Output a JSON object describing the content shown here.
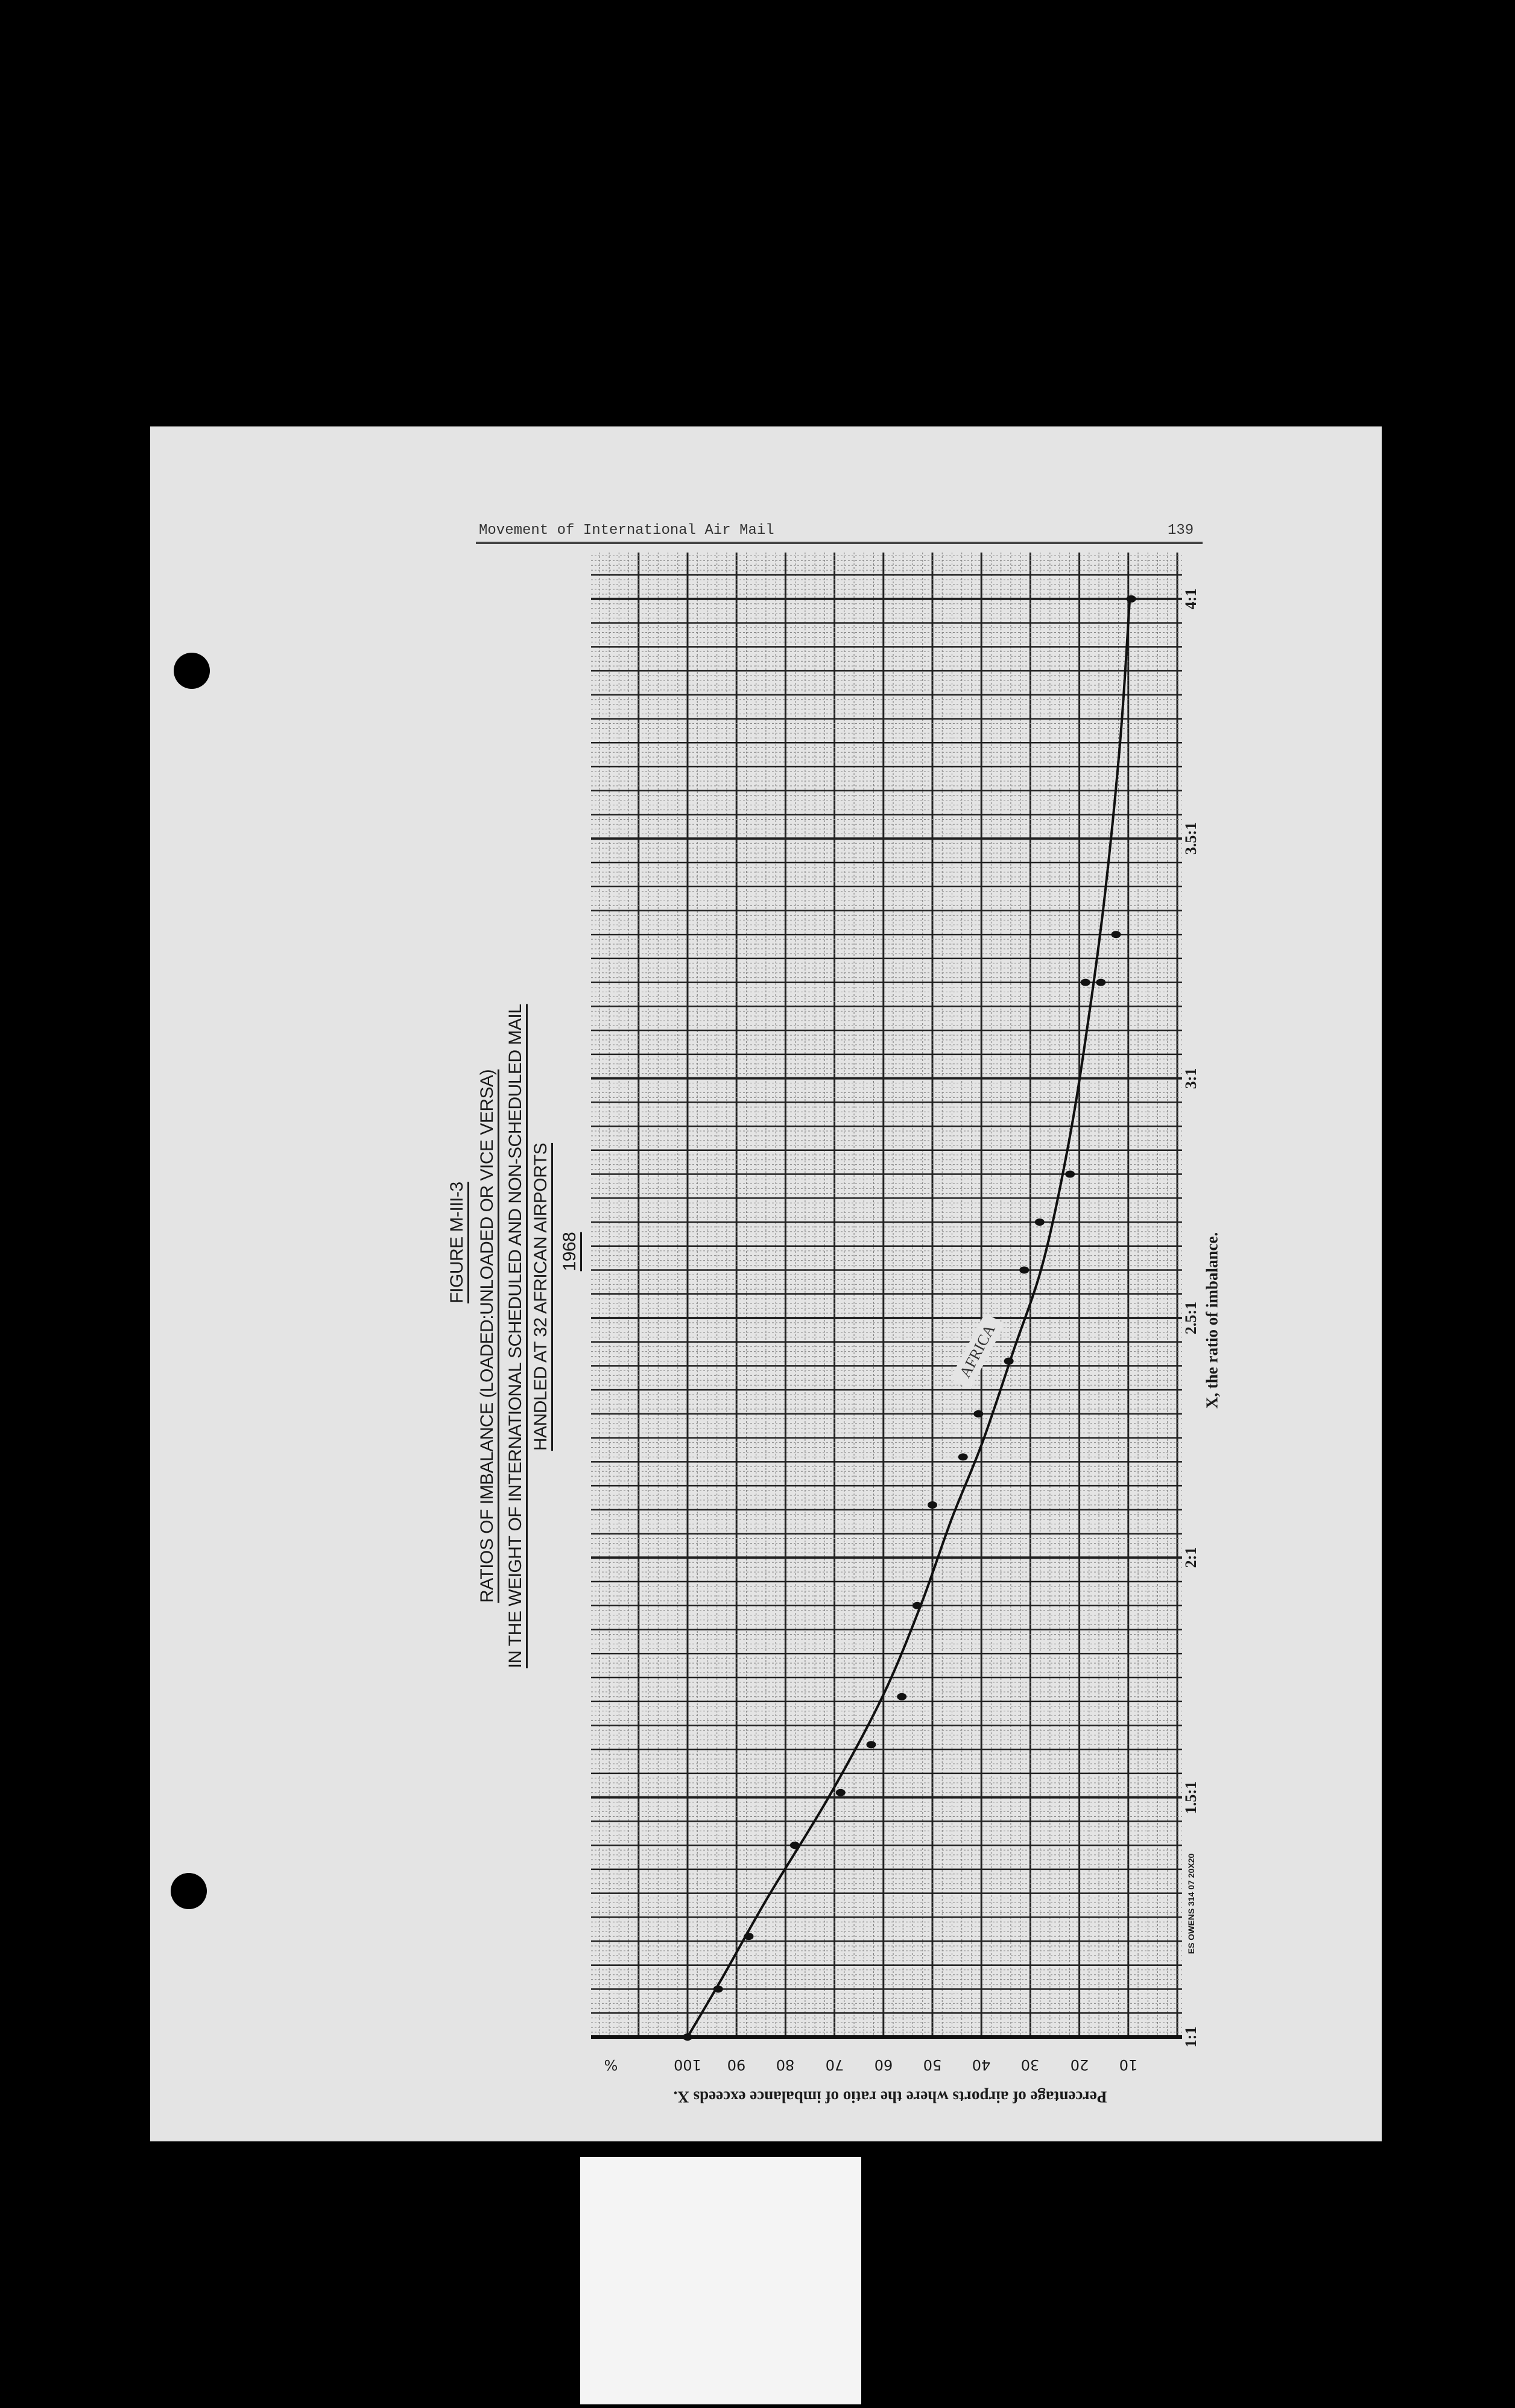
{
  "header": {
    "running_title": "Movement of International Air Mail",
    "page_number": "139"
  },
  "figure": {
    "number": "FIGURE M-III-3",
    "title_line1": "RATIOS OF IMBALANCE (LOADED:UNLOADED OR VICE VERSA)",
    "title_line2": "IN THE WEIGHT OF INTERNATIONAL SCHEDULED AND NON-SCHEDULED MAIL",
    "title_line3": "HANDLED AT 32 AFRICAN AIRPORTS",
    "year": "1968",
    "paper_imprint": "ES OWENS 314 07 20X20"
  },
  "chart_data": {
    "type": "scatter",
    "title": "RATIOS OF IMBALANCE (LOADED:UNLOADED OR VICE VERSA) IN THE WEIGHT OF INTERNATIONAL SCHEDULED AND NON-SCHEDULED MAIL HANDLED AT 32 AFRICAN AIRPORTS",
    "xlabel": "X, the ratio of imbalance.",
    "ylabel": "Percentage of airports where the ratio of imbalance exceeds X.",
    "y_unit": "%",
    "orientation": "rotated 90 degrees on page",
    "x_ticks": [
      "1:1",
      "1.5:1",
      "2:1",
      "2.5:1",
      "3:1",
      "3.5:1",
      "4:1"
    ],
    "x_tick_values": [
      1,
      1.5,
      2,
      2.5,
      3,
      3.5,
      4
    ],
    "y_ticks": [
      "100",
      "90",
      "80",
      "70",
      "60",
      "50",
      "40",
      "30",
      "20",
      "10"
    ],
    "y_tick_values": [
      100,
      90,
      80,
      70,
      60,
      50,
      40,
      30,
      20,
      10
    ],
    "xlim": [
      1,
      4.1
    ],
    "ylim": [
      0,
      120
    ],
    "grid": true,
    "series": [
      {
        "name": "AFRICA",
        "points": [
          [
            1.0,
            100
          ],
          [
            1.1,
            93.75
          ],
          [
            1.21,
            87.5
          ],
          [
            1.4,
            78.1
          ],
          [
            1.51,
            68.75
          ],
          [
            1.61,
            62.5
          ],
          [
            1.71,
            56.25
          ],
          [
            1.9,
            53.1
          ],
          [
            2.11,
            50
          ],
          [
            2.21,
            43.75
          ],
          [
            2.3,
            40.6
          ],
          [
            2.41,
            34.4
          ],
          [
            2.6,
            31.25
          ],
          [
            2.7,
            28.1
          ],
          [
            2.8,
            21.9
          ],
          [
            3.2,
            18.75
          ],
          [
            3.2,
            15.6
          ],
          [
            3.3,
            12.5
          ],
          [
            4.0,
            9.4
          ]
        ],
        "curve": [
          [
            1.0,
            100
          ],
          [
            1.12,
            93.1
          ],
          [
            1.29,
            83.7
          ],
          [
            1.5,
            71.2
          ],
          [
            1.71,
            60.2
          ],
          [
            1.9,
            52.4
          ],
          [
            2.08,
            46.1
          ],
          [
            2.24,
            39.8
          ],
          [
            2.43,
            33.5
          ],
          [
            2.62,
            27.3
          ],
          [
            2.88,
            21.9
          ],
          [
            3.14,
            17.9
          ],
          [
            3.39,
            14.7
          ],
          [
            3.71,
            11.6
          ],
          [
            4.0,
            9.7
          ]
        ]
      }
    ],
    "colors": {
      "ink": "#1a1a1a",
      "paper": "#e4e4e4"
    }
  }
}
